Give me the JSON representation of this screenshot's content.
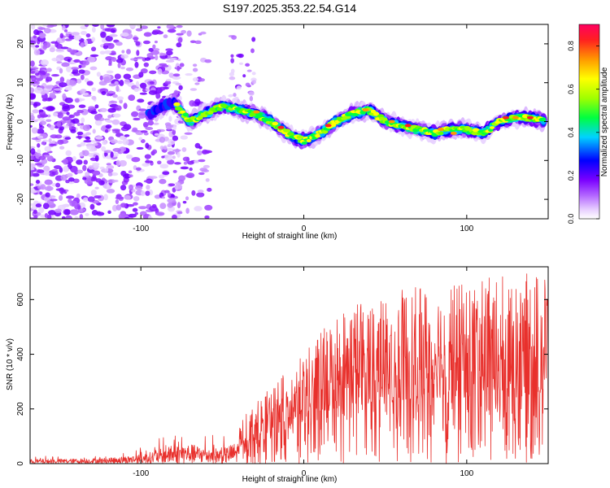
{
  "title": "S197.2025.353.22.54.G14",
  "chart_data": [
    {
      "type": "heatmap",
      "xlabel": "Height of straight line (km)",
      "ylabel": "Frequency (Hz)",
      "xlim": [
        -168,
        150
      ],
      "ylim": [
        -25,
        25
      ],
      "x_ticks": [
        -100,
        0,
        100
      ],
      "y_ticks": [
        -20,
        -10,
        0,
        10,
        20
      ],
      "colorbar": {
        "label": "Normalized spectral amplitude",
        "range": [
          0,
          0.9
        ],
        "ticks": [
          0.0,
          0.2,
          0.4,
          0.6,
          0.8
        ]
      },
      "ridge": {
        "x": [
          -100,
          -90,
          -80,
          -70,
          -60,
          -50,
          -40,
          -30,
          -20,
          -10,
          0,
          10,
          20,
          30,
          40,
          50,
          60,
          70,
          80,
          90,
          100,
          110,
          120,
          130,
          140,
          148
        ],
        "freq": [
          1,
          3,
          5,
          0,
          2,
          4,
          3,
          2,
          0,
          -3,
          -5,
          -3,
          0,
          2,
          3,
          0,
          -1,
          -2,
          -3,
          -2,
          -2,
          -3,
          0,
          1,
          1,
          0
        ]
      },
      "grid": false
    },
    {
      "type": "line",
      "xlabel": "Height of straight line (km)",
      "ylabel": "SNR (10 * v/v)",
      "xlim": [
        -168,
        150
      ],
      "ylim": [
        0,
        720
      ],
      "x_ticks": [
        -100,
        0,
        100
      ],
      "y_ticks": [
        0,
        200,
        400,
        600
      ],
      "series": [
        {
          "name": "SNR",
          "color": "#e8302c",
          "envelope_x": [
            -168,
            -140,
            -120,
            -100,
            -90,
            -80,
            -70,
            -60,
            -50,
            -40,
            -30,
            -20,
            -10,
            0,
            10,
            20,
            40,
            60,
            80,
            100,
            120,
            140,
            150
          ],
          "envelope_max": [
            28,
            32,
            38,
            60,
            90,
            120,
            130,
            110,
            100,
            150,
            220,
            280,
            340,
            400,
            480,
            560,
            620,
            640,
            650,
            660,
            690,
            700,
            700
          ],
          "baseline": [
            8,
            10,
            12,
            20,
            30,
            35,
            30,
            30,
            40,
            60,
            80,
            100,
            130,
            150,
            170,
            200,
            220,
            230,
            240,
            240,
            250,
            250,
            250
          ]
        }
      ],
      "grid": false
    }
  ]
}
